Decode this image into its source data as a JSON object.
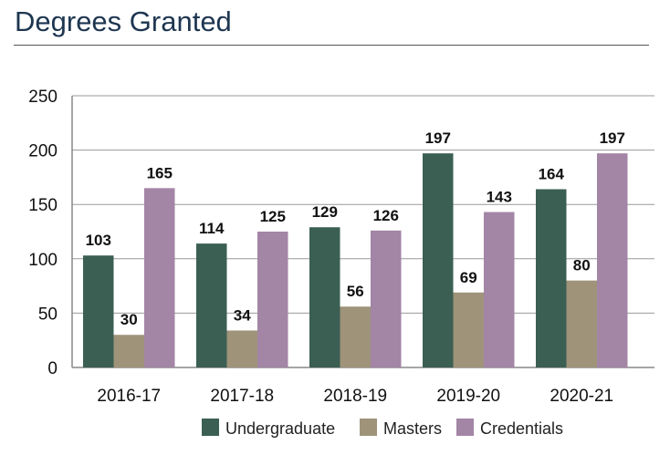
{
  "chart_data": {
    "type": "bar",
    "title": "Degrees Granted",
    "xlabel": "",
    "ylabel": "",
    "ylim": [
      0,
      250
    ],
    "yticks": [
      0,
      50,
      100,
      150,
      200,
      250
    ],
    "grid": true,
    "legend_position": "bottom",
    "categories": [
      "2016-17",
      "2017-18",
      "2018-19",
      "2019-20",
      "2020-21"
    ],
    "series": [
      {
        "name": "Undergraduate",
        "color": "#3b5f53",
        "values": [
          103,
          114,
          129,
          197,
          164
        ]
      },
      {
        "name": "Masters",
        "color": "#9f937a",
        "values": [
          30,
          34,
          56,
          69,
          80
        ]
      },
      {
        "name": "Credentials",
        "color": "#a385a5",
        "values": [
          165,
          125,
          126,
          143,
          197
        ]
      }
    ]
  }
}
